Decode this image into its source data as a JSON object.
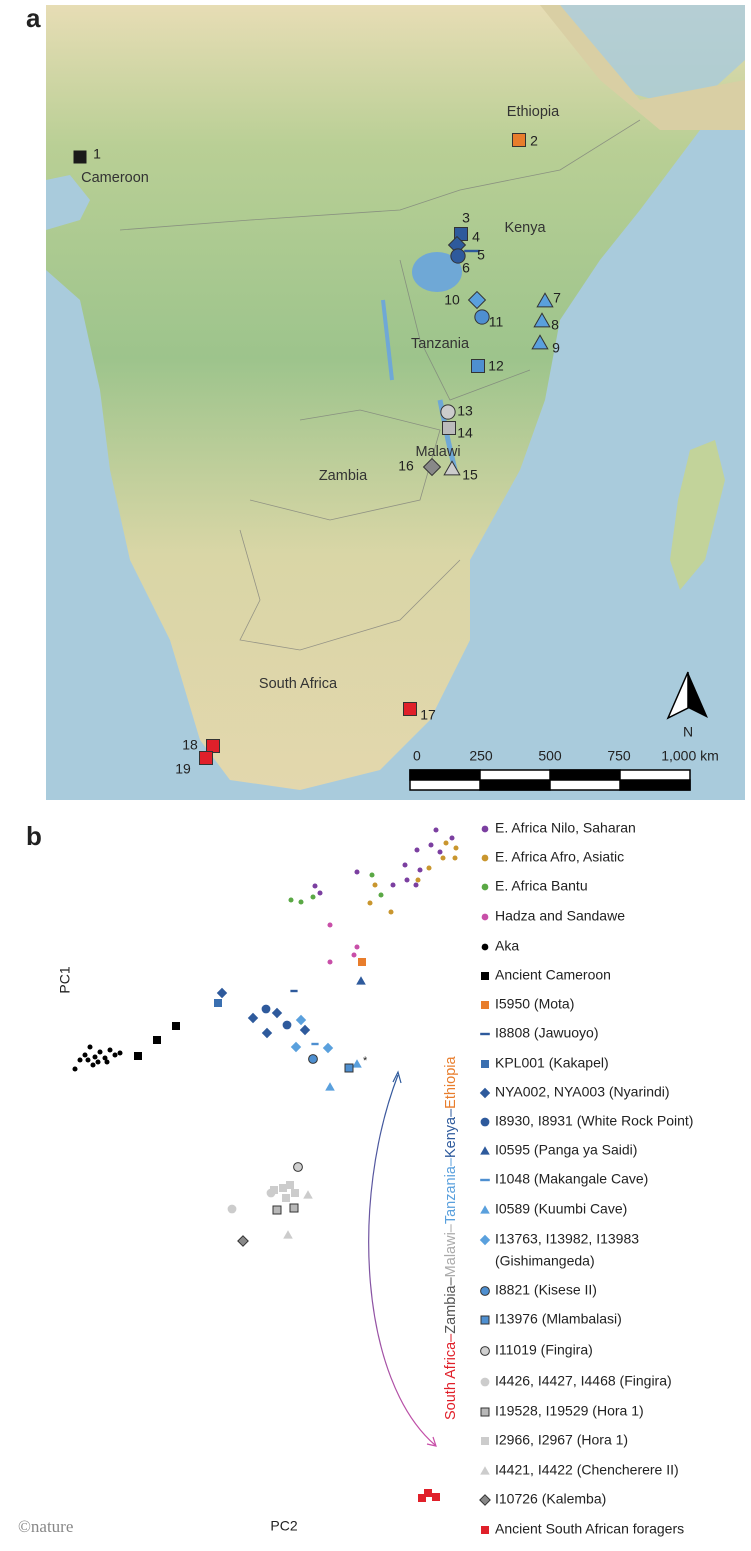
{
  "panel_a": {
    "label": "a",
    "countries": [
      "Ethiopia",
      "Cameroon",
      "Kenya",
      "Tanzania",
      "Malawi",
      "Zambia",
      "South Africa"
    ],
    "sites": [
      "1",
      "2",
      "3",
      "4",
      "5",
      "6",
      "7",
      "8",
      "9",
      "10",
      "11",
      "12",
      "13",
      "14",
      "15",
      "16",
      "17",
      "18",
      "19"
    ],
    "scale_ticks": [
      "0",
      "250",
      "500",
      "750",
      "1,000 km"
    ],
    "north": "N"
  },
  "panel_b": {
    "label": "b",
    "x_axis": "PC2",
    "y_axis": "PC1",
    "note": "*",
    "gradient_label": [
      {
        "text": "South Africa–",
        "color": "#e0202a"
      },
      {
        "text": "Zambia–",
        "color": "#555555"
      },
      {
        "text": "Malawi–",
        "color": "#aaaaaa"
      },
      {
        "text": "Tanzania–",
        "color": "#5aa0dd"
      },
      {
        "text": "Kenya–",
        "color": "#2e5a9c"
      },
      {
        "text": "Ethiopia",
        "color": "#e87d2c"
      }
    ],
    "legend": [
      {
        "label": "E. Africa Nilo, Saharan",
        "color": "#7b3fa0",
        "marker": "dot"
      },
      {
        "label": "E. Africa Afro, Asiatic",
        "color": "#c9962e",
        "marker": "dot"
      },
      {
        "label": "E. Africa Bantu",
        "color": "#5aa845",
        "marker": "dot"
      },
      {
        "label": "Hadza and Sandawe",
        "color": "#c84fa8",
        "marker": "dot"
      },
      {
        "label": "Aka",
        "color": "#000000",
        "marker": "dot"
      },
      {
        "label": "Ancient Cameroon",
        "color": "#000000",
        "marker": "square"
      },
      {
        "label": "I5950 (Mota)",
        "color": "#e87d2c",
        "marker": "square"
      },
      {
        "label": "I8808 (Jawuoyo)",
        "color": "#2e5a9c",
        "marker": "dash"
      },
      {
        "label": "KPL001 (Kakapel)",
        "color": "#3a6fb0",
        "marker": "square"
      },
      {
        "label": "NYA002, NYA003 (Nyarindi)",
        "color": "#2e5a9c",
        "marker": "diamond"
      },
      {
        "label": "I8930, I8931 (White Rock Point)",
        "color": "#2e5a9c",
        "marker": "circle"
      },
      {
        "label": "I0595 (Panga ya Saidi)",
        "color": "#2e5a9c",
        "marker": "triangle"
      },
      {
        "label": "I1048 (Makangale Cave)",
        "color": "#4e8fd0",
        "marker": "dash"
      },
      {
        "label": "I0589 (Kuumbi Cave)",
        "color": "#5aa0dd",
        "marker": "triangle"
      },
      {
        "label": [
          "I13763, I13982, I13983",
          "(Gishimangeda)"
        ],
        "color": "#5aa0dd",
        "marker": "diamond"
      },
      {
        "label": "I8821 (Kisese II)",
        "color": "#4e8fd0",
        "marker": "circle-outline"
      },
      {
        "label": "I13976 (Mlambalasi)",
        "color": "#4e8fd0",
        "marker": "square-outline"
      },
      {
        "label": "I11019 (Fingira)",
        "color": "#d0d0d0",
        "marker": "circle-outline"
      },
      {
        "label": "I4426, I4427, I4468 (Fingira)",
        "color": "#cccccc",
        "marker": "circle"
      },
      {
        "label": "I19528, I19529 (Hora 1)",
        "color": "#b8b8b8",
        "marker": "square-outline"
      },
      {
        "label": "I2966, I2967 (Hora 1)",
        "color": "#cccccc",
        "marker": "square"
      },
      {
        "label": "I4421, I4422 (Chencherere II)",
        "color": "#cccccc",
        "marker": "triangle"
      },
      {
        "label": "I10726 (Kalemba)",
        "color": "#888888",
        "marker": "diamond-outline"
      },
      {
        "label": "Ancient South African foragers",
        "color": "#e0202a",
        "marker": "square"
      }
    ]
  },
  "credit": "©nature"
}
